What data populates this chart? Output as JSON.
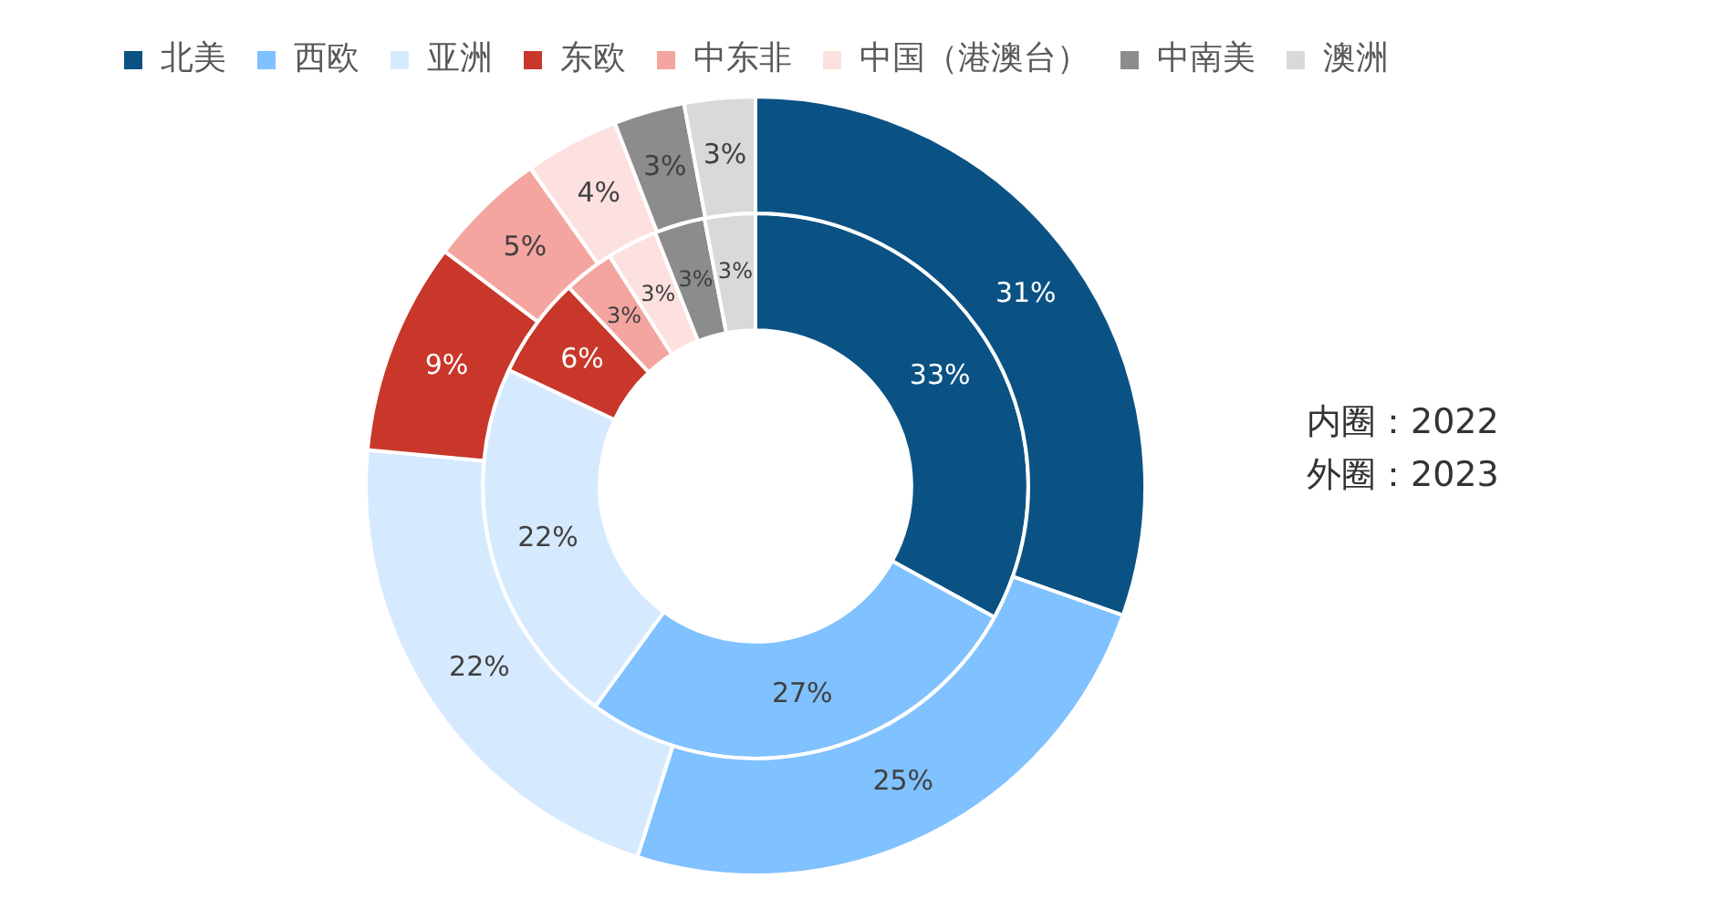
{
  "chart_data": {
    "type": "donut",
    "categories": [
      "北美",
      "西欧",
      "亚洲",
      "东欧",
      "中东非",
      "中国（港澳台）",
      "中南美",
      "澳洲"
    ],
    "colors": [
      "#0b5284",
      "#80c1ff",
      "#d6eaff",
      "#c8372a",
      "#f4a5a0",
      "#fde0e0",
      "#8c8c8c",
      "#d9d9d9"
    ],
    "series": [
      {
        "values": [
          31,
          25,
          22,
          9,
          5,
          4,
          3,
          3
        ],
        "value_labels": [
          "31%",
          "25%",
          "22%",
          "9%",
          "5%",
          "4%",
          "3%",
          "3%"
        ]
      },
      {
        "values": [
          33,
          27,
          22,
          6,
          3,
          3,
          3,
          3
        ],
        "value_labels": [
          "33%",
          "27%",
          "22%",
          "6%",
          "3%",
          "3%",
          "3%",
          "3%"
        ]
      }
    ],
    "legend": "top",
    "annotations": [
      "内圈：2022",
      "外圈：2023"
    ]
  }
}
